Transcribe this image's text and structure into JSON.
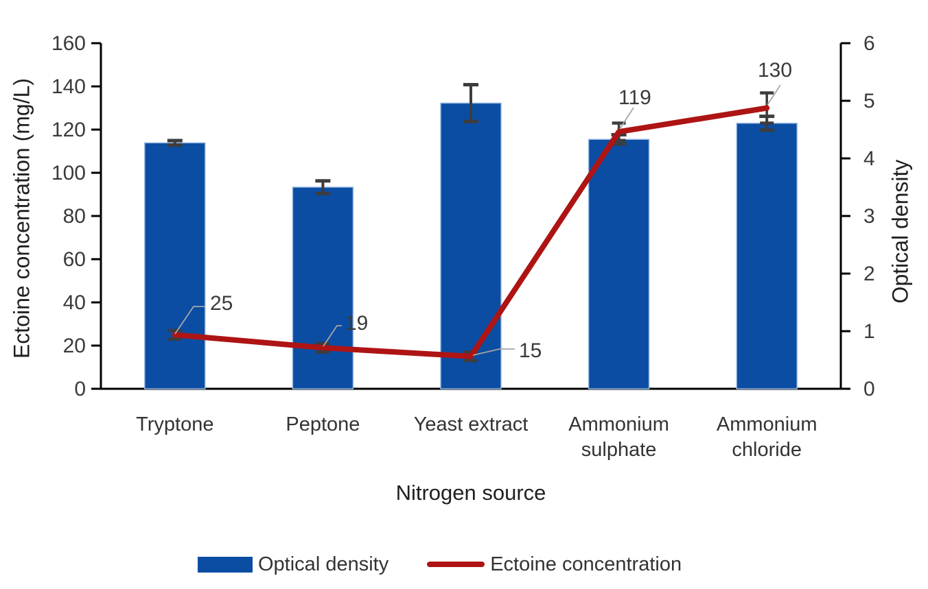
{
  "chart_data": {
    "type": "bar+line combo",
    "categories": [
      "Tryptone",
      "Peptone",
      "Yeast extract",
      "Ammonium sulphate",
      "Ammonium chloride"
    ],
    "series": [
      {
        "name": "Optical density",
        "type": "bar",
        "axis": "right",
        "color": "#0b4da3",
        "values": [
          4.27,
          3.5,
          4.96,
          4.33,
          4.61
        ],
        "errors": [
          0.04,
          0.11,
          0.32,
          0.08,
          0.12
        ]
      },
      {
        "name": "Ectoine concentration",
        "type": "line",
        "axis": "left",
        "color": "#ae1414",
        "values": [
          25,
          19,
          15,
          119,
          130
        ],
        "errors": [
          2,
          2,
          2,
          4,
          7
        ],
        "data_labels": [
          "25",
          "19",
          "15",
          "119",
          "130"
        ]
      }
    ],
    "left_axis": {
      "title": "Ectoine concentration (mg/L)",
      "min": 0,
      "max": 160,
      "step": 20
    },
    "right_axis": {
      "title": "Optical density",
      "min": 0,
      "max": 6,
      "step": 1
    },
    "x_axis": {
      "title": "Nitrogen source"
    },
    "legend": [
      {
        "label": "Optical density",
        "swatch": "bar",
        "color": "#0b4da3"
      },
      {
        "label": "Ectoine concentration",
        "swatch": "line",
        "color": "#ae1414"
      }
    ],
    "grid": false,
    "colors": {
      "axis": "#000000",
      "tick_text": "#3a3a3a",
      "error_bar": "#3d3d3d",
      "leader_line": "#a6a6a6"
    }
  }
}
